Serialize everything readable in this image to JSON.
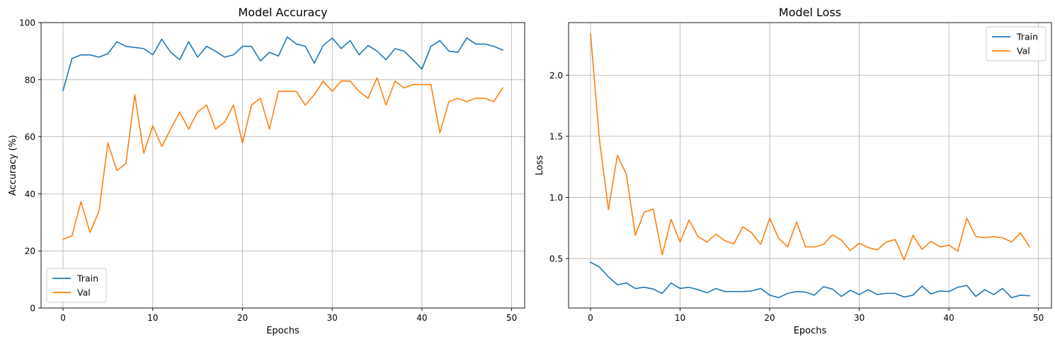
{
  "chart_data": [
    {
      "type": "line",
      "title": "Model Accuracy",
      "xlabel": "Epochs",
      "ylabel": "Accuracy (%)",
      "xlim": [
        -2.45,
        51.45
      ],
      "ylim": [
        0,
        100
      ],
      "xticks": [
        0,
        10,
        20,
        30,
        40,
        50
      ],
      "yticks": [
        0,
        20,
        40,
        60,
        80,
        100
      ],
      "grid": true,
      "legend_position": "bottom-left",
      "x": [
        0,
        1,
        2,
        3,
        4,
        5,
        6,
        7,
        8,
        9,
        10,
        11,
        12,
        13,
        14,
        15,
        16,
        17,
        18,
        19,
        20,
        21,
        22,
        23,
        24,
        25,
        26,
        27,
        28,
        29,
        30,
        31,
        32,
        33,
        34,
        35,
        36,
        37,
        38,
        39,
        40,
        41,
        42,
        43,
        44,
        45,
        46,
        47,
        48,
        49
      ],
      "series": [
        {
          "name": "Train",
          "color": "#1f77b4",
          "values": [
            76.2,
            87.4,
            88.7,
            88.7,
            87.9,
            89.1,
            93.3,
            91.7,
            91.3,
            90.9,
            88.7,
            94.2,
            89.6,
            87.0,
            93.3,
            87.9,
            91.7,
            90.0,
            87.9,
            88.7,
            91.7,
            91.7,
            86.6,
            89.6,
            88.3,
            95.0,
            92.5,
            91.7,
            85.8,
            92.0,
            94.6,
            90.9,
            93.7,
            88.7,
            92.0,
            90.0,
            87.0,
            90.9,
            90.0,
            87.0,
            83.7,
            91.7,
            93.7,
            90.0,
            89.6,
            94.6,
            92.5,
            92.5,
            91.7,
            90.4
          ]
        },
        {
          "name": "Val",
          "color": "#ff7f0e",
          "values": [
            24.1,
            25.3,
            37.3,
            26.5,
            33.9,
            57.8,
            48.2,
            50.6,
            74.7,
            54.2,
            63.9,
            56.6,
            62.7,
            68.7,
            62.7,
            68.7,
            71.1,
            62.7,
            65.1,
            71.1,
            57.8,
            71.1,
            73.5,
            62.7,
            75.9,
            75.9,
            75.9,
            71.1,
            74.7,
            79.5,
            75.9,
            79.5,
            79.5,
            75.9,
            73.5,
            80.7,
            71.1,
            79.5,
            77.1,
            78.3,
            78.3,
            78.3,
            61.4,
            72.3,
            73.5,
            72.3,
            73.5,
            73.5,
            72.3,
            77.1
          ]
        }
      ]
    },
    {
      "type": "line",
      "title": "Model Loss",
      "xlabel": "Epochs",
      "ylabel": "Loss",
      "xlim": [
        -2.45,
        51.45
      ],
      "ylim": [
        0.095,
        2.43
      ],
      "xticks": [
        0,
        10,
        20,
        30,
        40,
        50
      ],
      "yticks": [
        0.5,
        1.0,
        1.5,
        2.0
      ],
      "yticklabels": [
        "0.5",
        "1.0",
        "1.5",
        "2.0"
      ],
      "grid": true,
      "legend_position": "top-right",
      "x": [
        0,
        1,
        2,
        3,
        4,
        5,
        6,
        7,
        8,
        9,
        10,
        11,
        12,
        13,
        14,
        15,
        16,
        17,
        18,
        19,
        20,
        21,
        22,
        23,
        24,
        25,
        26,
        27,
        28,
        29,
        30,
        31,
        32,
        33,
        34,
        35,
        36,
        37,
        38,
        39,
        40,
        41,
        42,
        43,
        44,
        45,
        46,
        47,
        48,
        49
      ],
      "series": [
        {
          "name": "Train",
          "color": "#1f77b4",
          "values": [
            0.47,
            0.43,
            0.35,
            0.285,
            0.3,
            0.255,
            0.265,
            0.25,
            0.215,
            0.3,
            0.255,
            0.265,
            0.245,
            0.22,
            0.255,
            0.23,
            0.23,
            0.23,
            0.235,
            0.255,
            0.2,
            0.18,
            0.215,
            0.23,
            0.225,
            0.2,
            0.27,
            0.25,
            0.19,
            0.24,
            0.205,
            0.245,
            0.205,
            0.215,
            0.215,
            0.185,
            0.2,
            0.275,
            0.21,
            0.235,
            0.23,
            0.265,
            0.28,
            0.19,
            0.245,
            0.205,
            0.255,
            0.18,
            0.2,
            0.195
          ]
        },
        {
          "name": "Val",
          "color": "#ff7f0e",
          "values": [
            2.34,
            1.47,
            0.9,
            1.345,
            1.19,
            0.69,
            0.88,
            0.905,
            0.53,
            0.82,
            0.635,
            0.815,
            0.68,
            0.635,
            0.7,
            0.645,
            0.62,
            0.76,
            0.71,
            0.615,
            0.83,
            0.665,
            0.595,
            0.8,
            0.595,
            0.595,
            0.615,
            0.695,
            0.65,
            0.565,
            0.625,
            0.59,
            0.57,
            0.635,
            0.655,
            0.49,
            0.69,
            0.575,
            0.64,
            0.595,
            0.61,
            0.56,
            0.83,
            0.68,
            0.67,
            0.68,
            0.67,
            0.635,
            0.71,
            0.595
          ]
        }
      ]
    }
  ]
}
